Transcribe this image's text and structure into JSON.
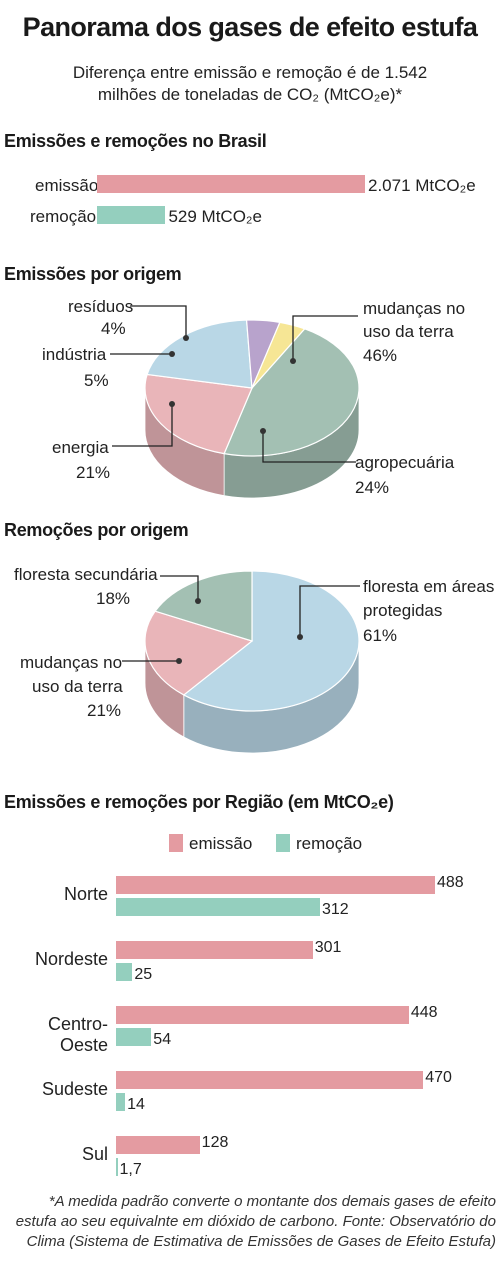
{
  "header": {
    "title": "Panorama dos gases de efeito estufa",
    "subtitle_line1": "Diferença entre emissão e remoção é de 1.542",
    "subtitle_line2": "milhões de toneladas de CO₂ (MtCO₂e)*"
  },
  "colors": {
    "emissao": "#e49ba1",
    "remocao": "#94cfbe",
    "pie_green": "#a3c0b3",
    "pie_pink": "#e9b5b9",
    "pie_blue": "#b9d7e6",
    "pie_purple": "#b8a3cc",
    "pie_yellow": "#f6e695"
  },
  "chart_data": [
    {
      "type": "bar",
      "title": "Emissões e remoções no Brasil",
      "categories": [
        "emissão",
        "remoção"
      ],
      "values": [
        2071,
        529
      ],
      "value_labels": [
        "2.071 MtCO₂e",
        "529 MtCO₂e"
      ]
    },
    {
      "type": "pie",
      "title": "Emissões por origem",
      "slices": [
        {
          "label": "mudanças no uso da terra",
          "value": 46,
          "display": "46%"
        },
        {
          "label": "agropecuária",
          "value": 24,
          "display": "24%"
        },
        {
          "label": "energia",
          "value": 21,
          "display": "21%"
        },
        {
          "label": "indústria",
          "value": 5,
          "display": "5%"
        },
        {
          "label": "resíduos",
          "value": 4,
          "display": "4%"
        }
      ]
    },
    {
      "type": "pie",
      "title": "Remoções por origem",
      "slices": [
        {
          "label": "floresta em áreas protegidas",
          "value": 61,
          "display": "61%"
        },
        {
          "label": "mudanças no uso da terra",
          "value": 21,
          "display": "21%"
        },
        {
          "label": "floresta secundária",
          "value": 18,
          "display": "18%"
        }
      ]
    },
    {
      "type": "bar",
      "title": "Emissões e remoções por Região (em MtCO₂e)",
      "categories": [
        "Norte",
        "Nordeste",
        "Centro-Oeste",
        "Sudeste",
        "Sul"
      ],
      "series": [
        {
          "name": "emissão",
          "values": [
            488,
            301,
            448,
            470,
            128
          ],
          "labels": [
            "488",
            "301",
            "448",
            "470",
            "128"
          ]
        },
        {
          "name": "remoção",
          "values": [
            312,
            25,
            54,
            14,
            1.7
          ],
          "labels": [
            "312",
            "25",
            "54",
            "14",
            "1,7"
          ]
        }
      ],
      "legend": "top"
    }
  ],
  "labels": {
    "pie1": {
      "residuos": "resíduos",
      "residuos_pct": "4%",
      "industria": "indústria",
      "industria_pct": "5%",
      "energia": "energia",
      "energia_pct": "21%",
      "mudancas_1": "mudanças no",
      "mudancas_2": "uso da terra",
      "mudancas_pct": "46%",
      "agro": "agropecuária",
      "agro_pct": "24%"
    },
    "pie2": {
      "secundaria": "floresta secundária",
      "secundaria_pct": "18%",
      "protegidas_1": "floresta em áreas",
      "protegidas_2": "protegidas",
      "protegidas_pct": "61%",
      "mudancas_1": "mudanças no",
      "mudancas_2": "uso da terra",
      "mudancas_pct": "21%"
    }
  },
  "footnote": "*A medida padrão converte o montante dos demais gases de efeito estufa ao seu equivalnte em dióxido de carbono. Fonte: Observatório do Clima (Sistema de Estimativa de Emissões de Gases de Efeito Estufa)"
}
